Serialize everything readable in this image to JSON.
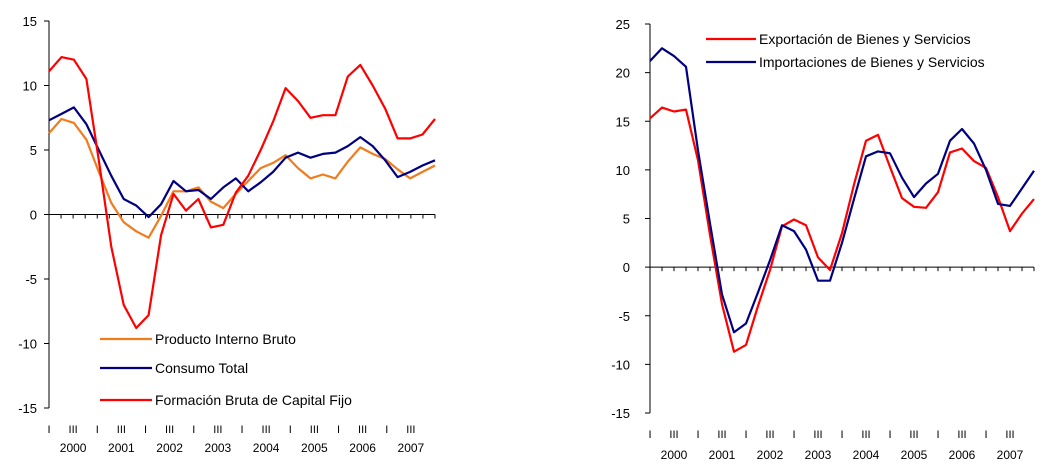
{
  "chart_data": [
    {
      "type": "line",
      "ylim": [
        -15,
        15
      ],
      "yticks": [
        -15,
        -10,
        -5,
        0,
        5,
        10,
        15
      ],
      "quarter_marks": [
        "I",
        "III"
      ],
      "years": [
        "2000",
        "2001",
        "2002",
        "2003",
        "2004",
        "2005",
        "2006",
        "2007"
      ],
      "legend_position": "bottom-center",
      "series": [
        {
          "name": "Producto Interno Bruto",
          "color": "#f07c1e",
          "values": [
            6.3,
            7.4,
            7.1,
            5.8,
            3.3,
            0.9,
            -0.6,
            -1.3,
            -1.8,
            -0.1,
            1.8,
            1.8,
            2.1,
            1.0,
            0.5,
            1.6,
            2.6,
            3.6,
            4.0,
            4.6,
            3.6,
            2.8,
            3.1,
            2.8,
            4.1,
            5.2,
            4.7,
            4.3,
            3.5,
            2.8,
            3.3,
            3.8
          ]
        },
        {
          "name": "Consumo Total",
          "color": "#000080",
          "values": [
            7.3,
            7.8,
            8.3,
            7.0,
            5.0,
            3.0,
            1.2,
            0.7,
            -0.2,
            0.8,
            2.6,
            1.8,
            1.9,
            1.2,
            2.1,
            2.8,
            1.8,
            2.5,
            3.3,
            4.4,
            4.8,
            4.4,
            4.7,
            4.8,
            5.3,
            6.0,
            5.3,
            4.2,
            2.9,
            3.3,
            3.8,
            4.2
          ]
        },
        {
          "name": "Formación Bruta de Capital Fijo",
          "color": "#ff0000",
          "values": [
            11.1,
            12.2,
            12.0,
            10.5,
            4.2,
            -2.5,
            -7.0,
            -8.8,
            -7.8,
            -1.6,
            1.6,
            0.3,
            1.2,
            -1.0,
            -0.8,
            1.7,
            3.0,
            5.0,
            7.2,
            9.8,
            8.8,
            7.5,
            7.7,
            7.7,
            10.7,
            11.6,
            10.0,
            8.2,
            5.9,
            5.9,
            6.2,
            7.4
          ]
        }
      ]
    },
    {
      "type": "line",
      "ylim": [
        -15,
        25
      ],
      "yticks": [
        -15,
        -10,
        -5,
        0,
        5,
        10,
        15,
        20,
        25
      ],
      "quarter_marks": [
        "I",
        "III"
      ],
      "years": [
        "2000",
        "2001",
        "2002",
        "2003",
        "2004",
        "2005",
        "2006",
        "2007"
      ],
      "legend_position": "top-right",
      "series": [
        {
          "name": "Exportación de Bienes y Servicios",
          "color": "#ff0000",
          "values": [
            15.3,
            16.4,
            16.0,
            16.2,
            11.0,
            3.3,
            -3.8,
            -8.7,
            -8.0,
            -4.0,
            -0.3,
            4.2,
            4.9,
            4.3,
            1.0,
            -0.3,
            3.5,
            8.5,
            13.0,
            13.6,
            10.3,
            7.1,
            6.2,
            6.1,
            7.7,
            11.8,
            12.2,
            10.9,
            10.2,
            7.2,
            3.7,
            5.5,
            7.0
          ]
        },
        {
          "name": "Importaciones de Bienes y Servicios",
          "color": "#000080",
          "values": [
            21.2,
            22.5,
            21.7,
            20.6,
            12.0,
            4.5,
            -2.8,
            -6.7,
            -5.8,
            -2.6,
            0.7,
            4.3,
            3.7,
            1.8,
            -1.4,
            -1.4,
            2.5,
            7.0,
            11.4,
            11.9,
            11.7,
            9.2,
            7.2,
            8.6,
            9.6,
            13.0,
            14.2,
            12.7,
            10.0,
            6.5,
            6.3,
            8.1,
            9.9
          ]
        }
      ]
    }
  ]
}
